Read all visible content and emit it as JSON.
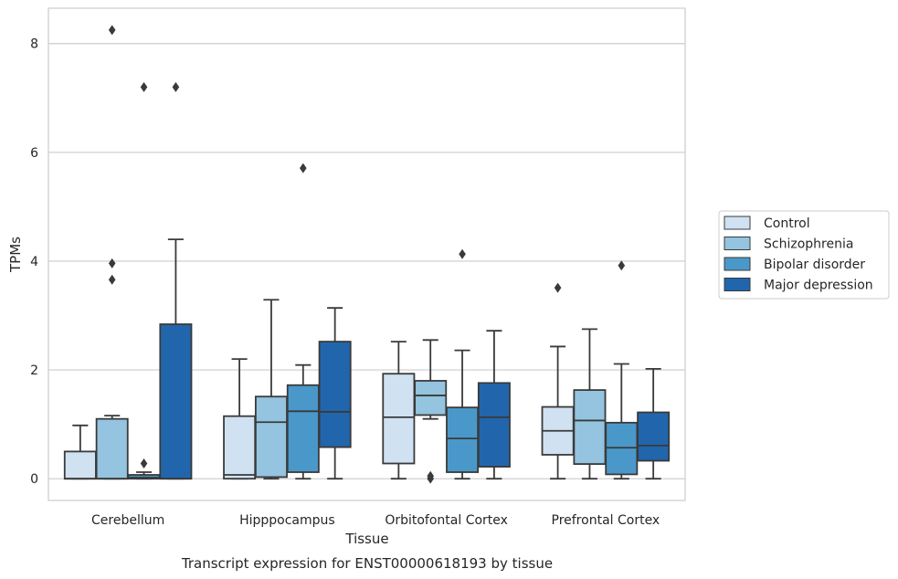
{
  "chart_data": {
    "type": "box",
    "caption": "Transcript expression for ENST00000618193 by tissue",
    "xlabel": "Tissue",
    "ylabel": "TPMs",
    "ylim": [
      -0.4,
      8.65
    ],
    "yticks": [
      0,
      2,
      4,
      6,
      8
    ],
    "grid": "horizontal",
    "legend_position": "right",
    "categories": [
      "Cerebellum",
      "Hipppocampus",
      "Orbitofontal Cortex",
      "Prefrontal Cortex"
    ],
    "series": [
      {
        "name": "Control",
        "color": "#d0e1f2",
        "boxes": [
          {
            "whisker_low": 0,
            "q1": 0,
            "median": 0,
            "q3": 0.5,
            "whisker_high": 0.98,
            "outliers": []
          },
          {
            "whisker_low": 0,
            "q1": 0,
            "median": 0.07,
            "q3": 1.15,
            "whisker_high": 2.2,
            "outliers": []
          },
          {
            "whisker_low": 0,
            "q1": 0.28,
            "median": 1.13,
            "q3": 1.93,
            "whisker_high": 2.52,
            "outliers": []
          },
          {
            "whisker_low": 0,
            "q1": 0.44,
            "median": 0.88,
            "q3": 1.32,
            "whisker_high": 2.43,
            "outliers": [
              3.51
            ]
          }
        ]
      },
      {
        "name": "Schizophrenia",
        "color": "#94c4df",
        "boxes": [
          {
            "whisker_low": 0,
            "q1": 0,
            "median": 0,
            "q3": 1.1,
            "whisker_high": 1.16,
            "outliers": [
              3.66,
              3.96,
              8.25
            ]
          },
          {
            "whisker_low": 0,
            "q1": 0.03,
            "median": 1.04,
            "q3": 1.51,
            "whisker_high": 3.29,
            "outliers": []
          },
          {
            "whisker_low": 1.1,
            "q1": 1.17,
            "median": 1.53,
            "q3": 1.8,
            "whisker_high": 2.55,
            "outliers": [
              0,
              0.05
            ]
          },
          {
            "whisker_low": 0,
            "q1": 0.27,
            "median": 1.07,
            "q3": 1.63,
            "whisker_high": 2.75,
            "outliers": []
          }
        ]
      },
      {
        "name": "Bipolar disorder",
        "color": "#4a98c9",
        "boxes": [
          {
            "whisker_low": 0,
            "q1": 0,
            "median": 0.02,
            "q3": 0.07,
            "whisker_high": 0.12,
            "outliers": [
              0.28,
              7.2
            ]
          },
          {
            "whisker_low": 0,
            "q1": 0.12,
            "median": 1.24,
            "q3": 1.72,
            "whisker_high": 2.09,
            "outliers": [
              5.71
            ]
          },
          {
            "whisker_low": 0,
            "q1": 0.12,
            "median": 0.74,
            "q3": 1.31,
            "whisker_high": 2.36,
            "outliers": [
              4.13
            ]
          },
          {
            "whisker_low": 0,
            "q1": 0.08,
            "median": 0.57,
            "q3": 1.03,
            "whisker_high": 2.11,
            "outliers": [
              3.92
            ]
          }
        ]
      },
      {
        "name": "Major depression",
        "color": "#2166ac",
        "boxes": [
          {
            "whisker_low": 0,
            "q1": 0,
            "median": 0,
            "q3": 2.84,
            "whisker_high": 4.4,
            "outliers": [
              7.2
            ]
          },
          {
            "whisker_low": 0,
            "q1": 0.58,
            "median": 1.23,
            "q3": 2.52,
            "whisker_high": 3.14,
            "outliers": []
          },
          {
            "whisker_low": 0,
            "q1": 0.22,
            "median": 1.13,
            "q3": 1.76,
            "whisker_high": 2.72,
            "outliers": []
          },
          {
            "whisker_low": 0,
            "q1": 0.33,
            "median": 0.61,
            "q3": 1.22,
            "whisker_high": 2.02,
            "outliers": []
          }
        ]
      }
    ]
  }
}
